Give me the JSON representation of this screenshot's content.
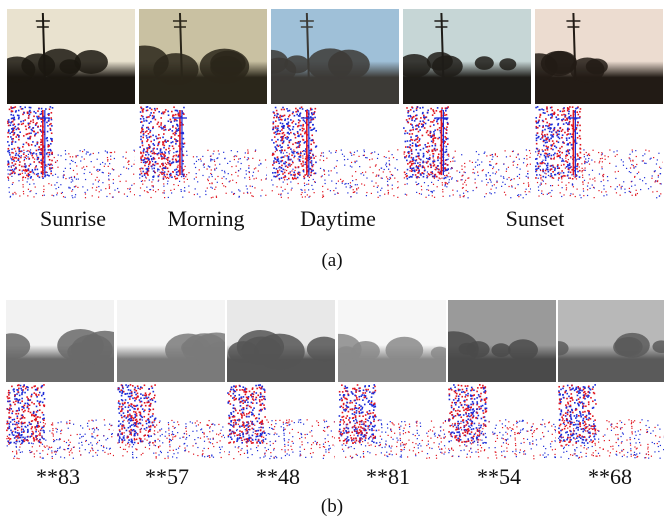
{
  "figure_a": {
    "caption": "(a)",
    "labels": [
      "Sunrise",
      "Morning",
      "Daytime",
      "Sunset"
    ],
    "photo_tones": [
      {
        "sky": "#e9e2cf",
        "ground": "#1b1711"
      },
      {
        "sky": "#c9c1a2",
        "ground": "#2a261a"
      },
      {
        "sky": "#9fc0d8",
        "ground": "#3c3a36"
      },
      {
        "sky": "#c6d6d6",
        "ground": "#1e1c18"
      },
      {
        "sky": "#ecdcd0",
        "ground": "#221b15"
      }
    ]
  },
  "figure_b": {
    "caption": "(b)",
    "labels": [
      "**83",
      "**57",
      "**48",
      "**81",
      "**54",
      "**68"
    ]
  },
  "event_colors": {
    "positive": "#e0141e",
    "negative": "#1a2bd8"
  }
}
